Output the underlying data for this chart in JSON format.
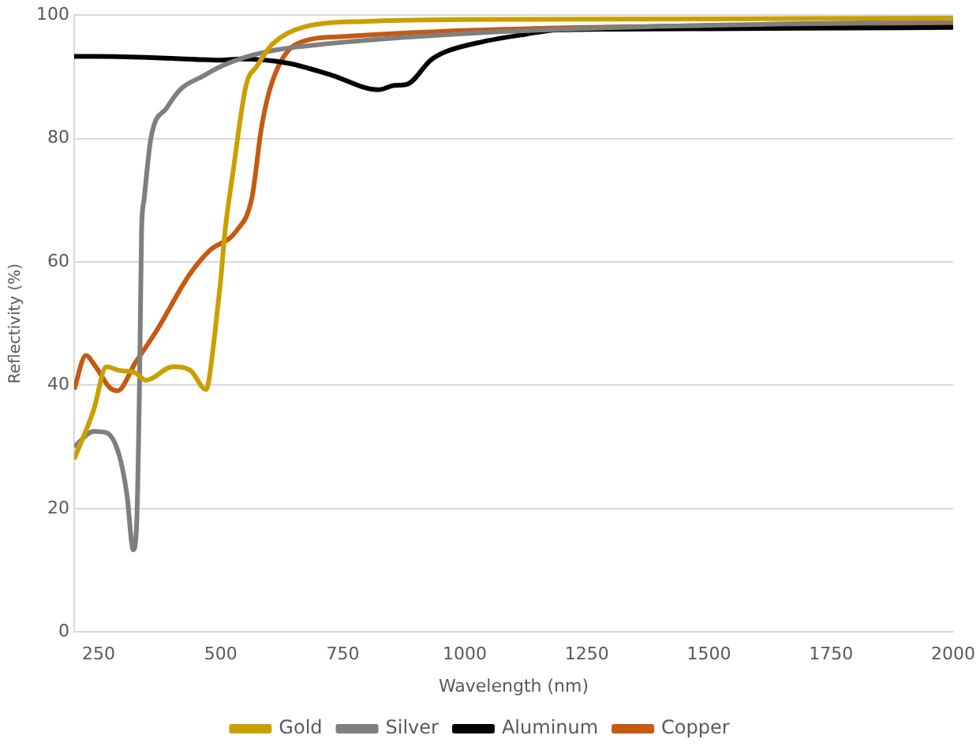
{
  "chart_data": {
    "type": "line",
    "xlabel": "Wavelength (nm)",
    "ylabel": "Reflectivity (%)",
    "xlim": [
      200,
      2000
    ],
    "ylim": [
      0,
      100
    ],
    "xticks": [
      250,
      500,
      750,
      1000,
      1250,
      1500,
      1750,
      2000
    ],
    "yticks": [
      0,
      20,
      40,
      60,
      80,
      100
    ],
    "grid": "y",
    "legend": "bottom",
    "marker": "none",
    "line_style": "solid",
    "series": [
      {
        "name": "Gold",
        "color": "#c9a000",
        "x": [
          200,
          240,
          266,
          292,
          325,
          347,
          402,
          438,
          470,
          487,
          493,
          500,
          509,
          525,
          552,
          574,
          606,
          671,
          801,
          1000,
          1500,
          2000
        ],
        "values": [
          28,
          36,
          43,
          42.4,
          42,
          40.8,
          43,
          42.4,
          39.3,
          47.6,
          52,
          57,
          65,
          74.4,
          88.6,
          91.7,
          95.3,
          98.1,
          99,
          99.3,
          99.4,
          99.5
        ]
      },
      {
        "name": "Silver",
        "color": "#7f7f7f",
        "x": [
          200,
          240,
          266,
          292,
          308,
          321,
          328,
          334,
          338,
          343,
          357,
          390,
          418,
          461,
          509,
          590,
          736,
          995,
          1319,
          2000
        ],
        "values": [
          30,
          32.5,
          32.3,
          28.7,
          22.3,
          13.3,
          17.5,
          41,
          65,
          70,
          80,
          85,
          88,
          90,
          92,
          94,
          95.5,
          97,
          98,
          99
        ]
      },
      {
        "name": "Aluminum",
        "color": "#000000",
        "x": [
          200,
          250,
          400,
          500,
          541,
          639,
          726,
          823,
          856,
          882,
          930,
          962,
          1037,
          1124,
          1189,
          1500,
          2000
        ],
        "values": [
          93.3,
          93.3,
          93,
          92.7,
          92.9,
          92.2,
          90.3,
          87.9,
          88.6,
          88.8,
          92.7,
          94.1,
          95.7,
          96.9,
          97.6,
          97.8,
          98
        ]
      },
      {
        "name": "Copper",
        "color": "#c55a11",
        "x": [
          200,
          224,
          244,
          273,
          289,
          325,
          370,
          435,
          477,
          532,
          564,
          584,
          606,
          655,
          746,
          908,
          1189,
          2000
        ],
        "values": [
          39.3,
          44.8,
          43,
          39.6,
          39.1,
          43.6,
          49,
          57.8,
          61.8,
          65,
          70.4,
          82,
          89.3,
          95.3,
          96.5,
          97.2,
          97.9,
          98.7
        ]
      }
    ]
  }
}
